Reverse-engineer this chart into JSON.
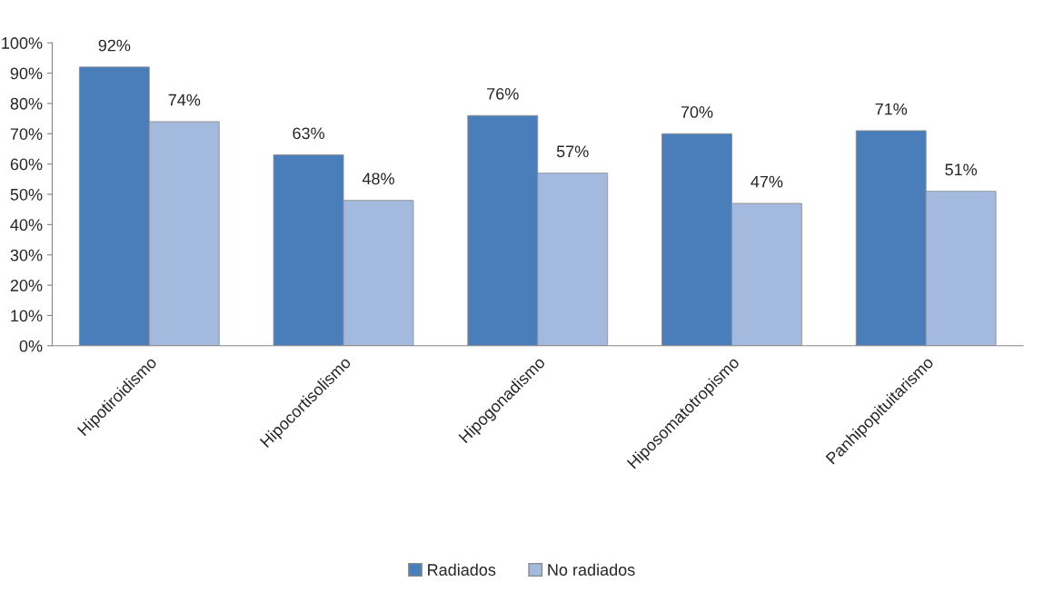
{
  "chart_data": {
    "type": "bar",
    "categories": [
      "Hipotiroidismo",
      "Hipocortisolismo",
      "Hipogonadismo",
      "Hiposomatotropismo",
      "Panhipopituitarismo"
    ],
    "series": [
      {
        "name": "Radiados",
        "color": "#4a7ebb",
        "values": [
          92,
          63,
          76,
          70,
          71
        ],
        "value_labels": [
          "92%",
          "63%",
          "76%",
          "70%",
          "71%"
        ]
      },
      {
        "name": "No radiados",
        "color": "#a3b9de",
        "values": [
          74,
          48,
          57,
          47,
          51
        ],
        "value_labels": [
          "74%",
          "48%",
          "57%",
          "47%",
          "51%"
        ]
      }
    ],
    "ylim": [
      0,
      100
    ],
    "yticks": [
      {
        "value": 0,
        "label": "0%"
      },
      {
        "value": 10,
        "label": "10%"
      },
      {
        "value": 20,
        "label": "20%"
      },
      {
        "value": 30,
        "label": "30%"
      },
      {
        "value": 40,
        "label": "40%"
      },
      {
        "value": 50,
        "label": "50%"
      },
      {
        "value": 60,
        "label": "60%"
      },
      {
        "value": 70,
        "label": "70%"
      },
      {
        "value": 80,
        "label": "80%"
      },
      {
        "value": 90,
        "label": "90%"
      },
      {
        "value": 100,
        "label": "100%"
      }
    ],
    "grid": false,
    "legend": "bottom"
  }
}
